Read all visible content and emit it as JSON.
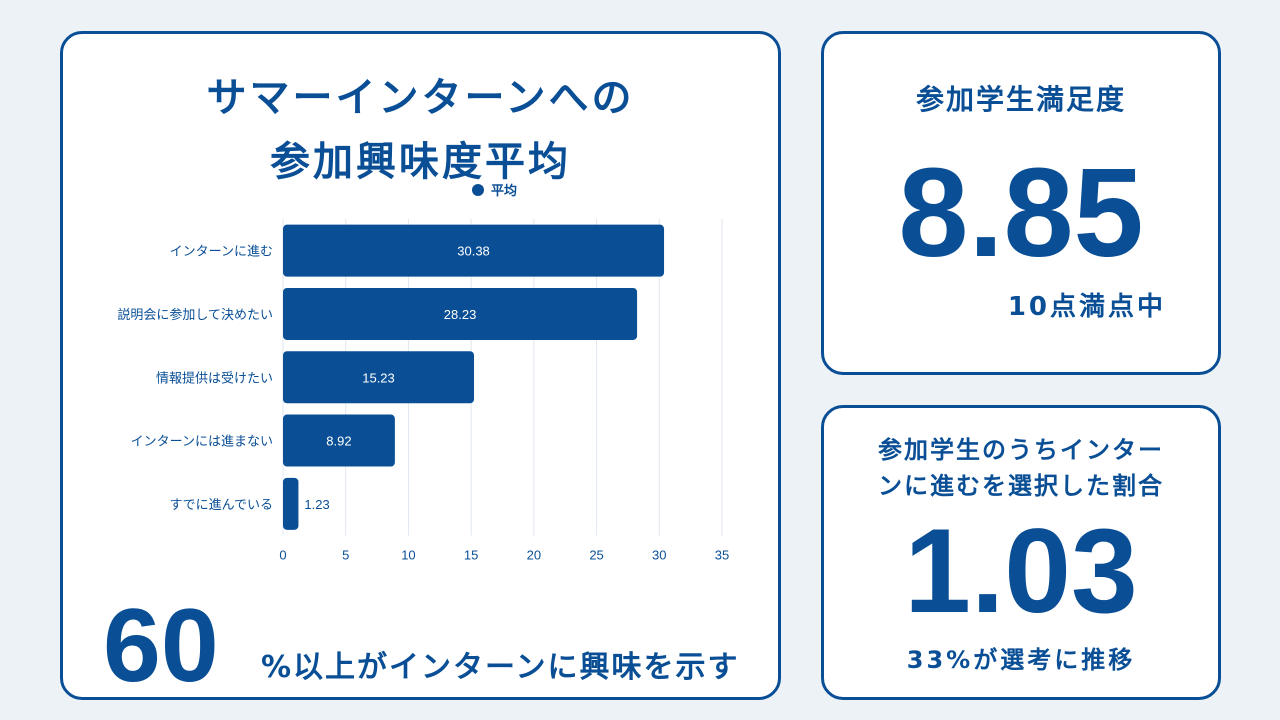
{
  "main_card": {
    "title_line1": "サマーインターンへの",
    "title_line2": "参加興味度平均",
    "big_number": "60",
    "big_number_caption": "%以上がインターンに興味を示す"
  },
  "chart_data": {
    "type": "bar",
    "orientation": "horizontal",
    "categories": [
      "インターンに進む",
      "説明会に参加して決めたい",
      "情報提供は受けたい",
      "インターンには進まない",
      "すでに進んでいる"
    ],
    "series": [
      {
        "name": "平均",
        "values": [
          30.38,
          28.23,
          15.23,
          8.92,
          1.23
        ]
      }
    ],
    "xlim": [
      0,
      35
    ],
    "xticks": [
      0,
      5,
      10,
      15,
      20,
      25,
      30,
      35
    ],
    "grid": true,
    "legend": "top",
    "bar_color": "#0a4f96"
  },
  "satisfaction_card": {
    "title": "参加学生満足度",
    "value": "8.85",
    "note": "10点満点中"
  },
  "rate_card": {
    "title_line1": "参加学生のうちインター",
    "title_line2": "ンに進むを選択した割合",
    "value": "1.03",
    "note": "33%が選考に推移"
  },
  "colors": {
    "accent": "#0a4f96",
    "background": "#edf2f7",
    "card": "#ffffff",
    "grid": "#dfe6ee"
  }
}
